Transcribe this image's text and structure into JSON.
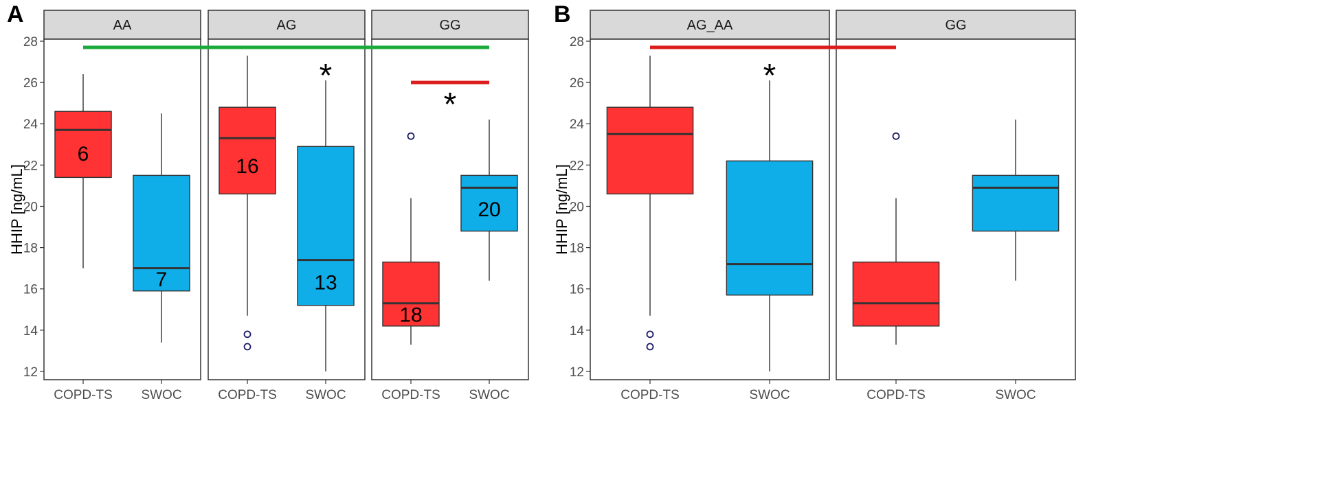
{
  "chart_data": [
    {
      "type": "box",
      "panel_label": "A",
      "ylabel": "HHIP [ng/mL]",
      "ylim": [
        11.6,
        28.1
      ],
      "yticks": [
        12,
        14,
        16,
        18,
        20,
        22,
        24,
        26,
        28
      ],
      "categories": [
        "COPD-TS",
        "SWOC"
      ],
      "colors": {
        "COPD-TS": "#ff3333",
        "SWOC": "#10aee8"
      },
      "facets": [
        {
          "label": "AA",
          "boxes": [
            {
              "group": "COPD-TS",
              "whisker_low": 17.0,
              "q1": 21.4,
              "median": 23.7,
              "q3": 24.6,
              "whisker_high": 26.4,
              "outliers": [],
              "n": "6"
            },
            {
              "group": "SWOC",
              "whisker_low": 13.4,
              "q1": 15.9,
              "median": 17.0,
              "q3": 21.5,
              "whisker_high": 24.5,
              "outliers": [],
              "n": "7"
            }
          ]
        },
        {
          "label": "AG",
          "boxes": [
            {
              "group": "COPD-TS",
              "whisker_low": 14.7,
              "q1": 20.6,
              "median": 23.3,
              "q3": 24.8,
              "whisker_high": 27.3,
              "outliers": [
                13.2,
                13.8
              ],
              "n": "16"
            },
            {
              "group": "SWOC",
              "whisker_low": 12.0,
              "q1": 15.2,
              "median": 17.4,
              "q3": 22.9,
              "whisker_high": 26.1,
              "outliers": [],
              "n": "13"
            }
          ]
        },
        {
          "label": "GG",
          "boxes": [
            {
              "group": "COPD-TS",
              "whisker_low": 13.3,
              "q1": 14.2,
              "median": 15.3,
              "q3": 17.3,
              "whisker_high": 20.4,
              "outliers": [
                23.4
              ],
              "n": "18"
            },
            {
              "group": "SWOC",
              "whisker_low": 16.4,
              "q1": 18.8,
              "median": 20.9,
              "q3": 21.5,
              "whisker_high": 24.2,
              "outliers": [],
              "n": "20"
            }
          ]
        }
      ],
      "annotations": [
        {
          "kind": "bracket",
          "color": "#1aaa3c",
          "y": 27.7,
          "from": {
            "facet": 0,
            "group": 0
          },
          "to": {
            "facet": 2,
            "group": 1
          }
        },
        {
          "kind": "bracket",
          "color": "#dd1c1c",
          "y": 26.0,
          "from": {
            "facet": 2,
            "group": 0
          },
          "to": {
            "facet": 2,
            "group": 1
          }
        },
        {
          "kind": "star",
          "text": "*",
          "facet": 1,
          "at": 0.75,
          "y": 26.4
        },
        {
          "kind": "star",
          "text": "*",
          "facet": 2,
          "at": 0.5,
          "y": 25.0
        }
      ]
    },
    {
      "type": "box",
      "panel_label": "B",
      "ylabel": "HHIP [ng/mL]",
      "ylim": [
        11.6,
        28.1
      ],
      "yticks": [
        12,
        14,
        16,
        18,
        20,
        22,
        24,
        26,
        28
      ],
      "categories": [
        "COPD-TS",
        "SWOC"
      ],
      "colors": {
        "COPD-TS": "#ff3333",
        "SWOC": "#10aee8"
      },
      "facets": [
        {
          "label": "AG_AA",
          "boxes": [
            {
              "group": "COPD-TS",
              "whisker_low": 14.7,
              "q1": 20.6,
              "median": 23.5,
              "q3": 24.8,
              "whisker_high": 27.3,
              "outliers": [
                13.2,
                13.8
              ]
            },
            {
              "group": "SWOC",
              "whisker_low": 12.0,
              "q1": 15.7,
              "median": 17.2,
              "q3": 22.2,
              "whisker_high": 26.1,
              "outliers": []
            }
          ]
        },
        {
          "label": "GG",
          "boxes": [
            {
              "group": "COPD-TS",
              "whisker_low": 13.3,
              "q1": 14.2,
              "median": 15.3,
              "q3": 17.3,
              "whisker_high": 20.4,
              "outliers": [
                23.4
              ]
            },
            {
              "group": "SWOC",
              "whisker_low": 16.4,
              "q1": 18.8,
              "median": 20.9,
              "q3": 21.5,
              "whisker_high": 24.2,
              "outliers": []
            }
          ]
        }
      ],
      "annotations": [
        {
          "kind": "bracket",
          "color": "#dd1c1c",
          "y": 27.7,
          "from": {
            "facet": 0,
            "group": 0
          },
          "to": {
            "facet": 1,
            "group": 0
          }
        },
        {
          "kind": "star",
          "text": "*",
          "facet": 0,
          "at": 0.75,
          "y": 26.4
        }
      ]
    }
  ]
}
